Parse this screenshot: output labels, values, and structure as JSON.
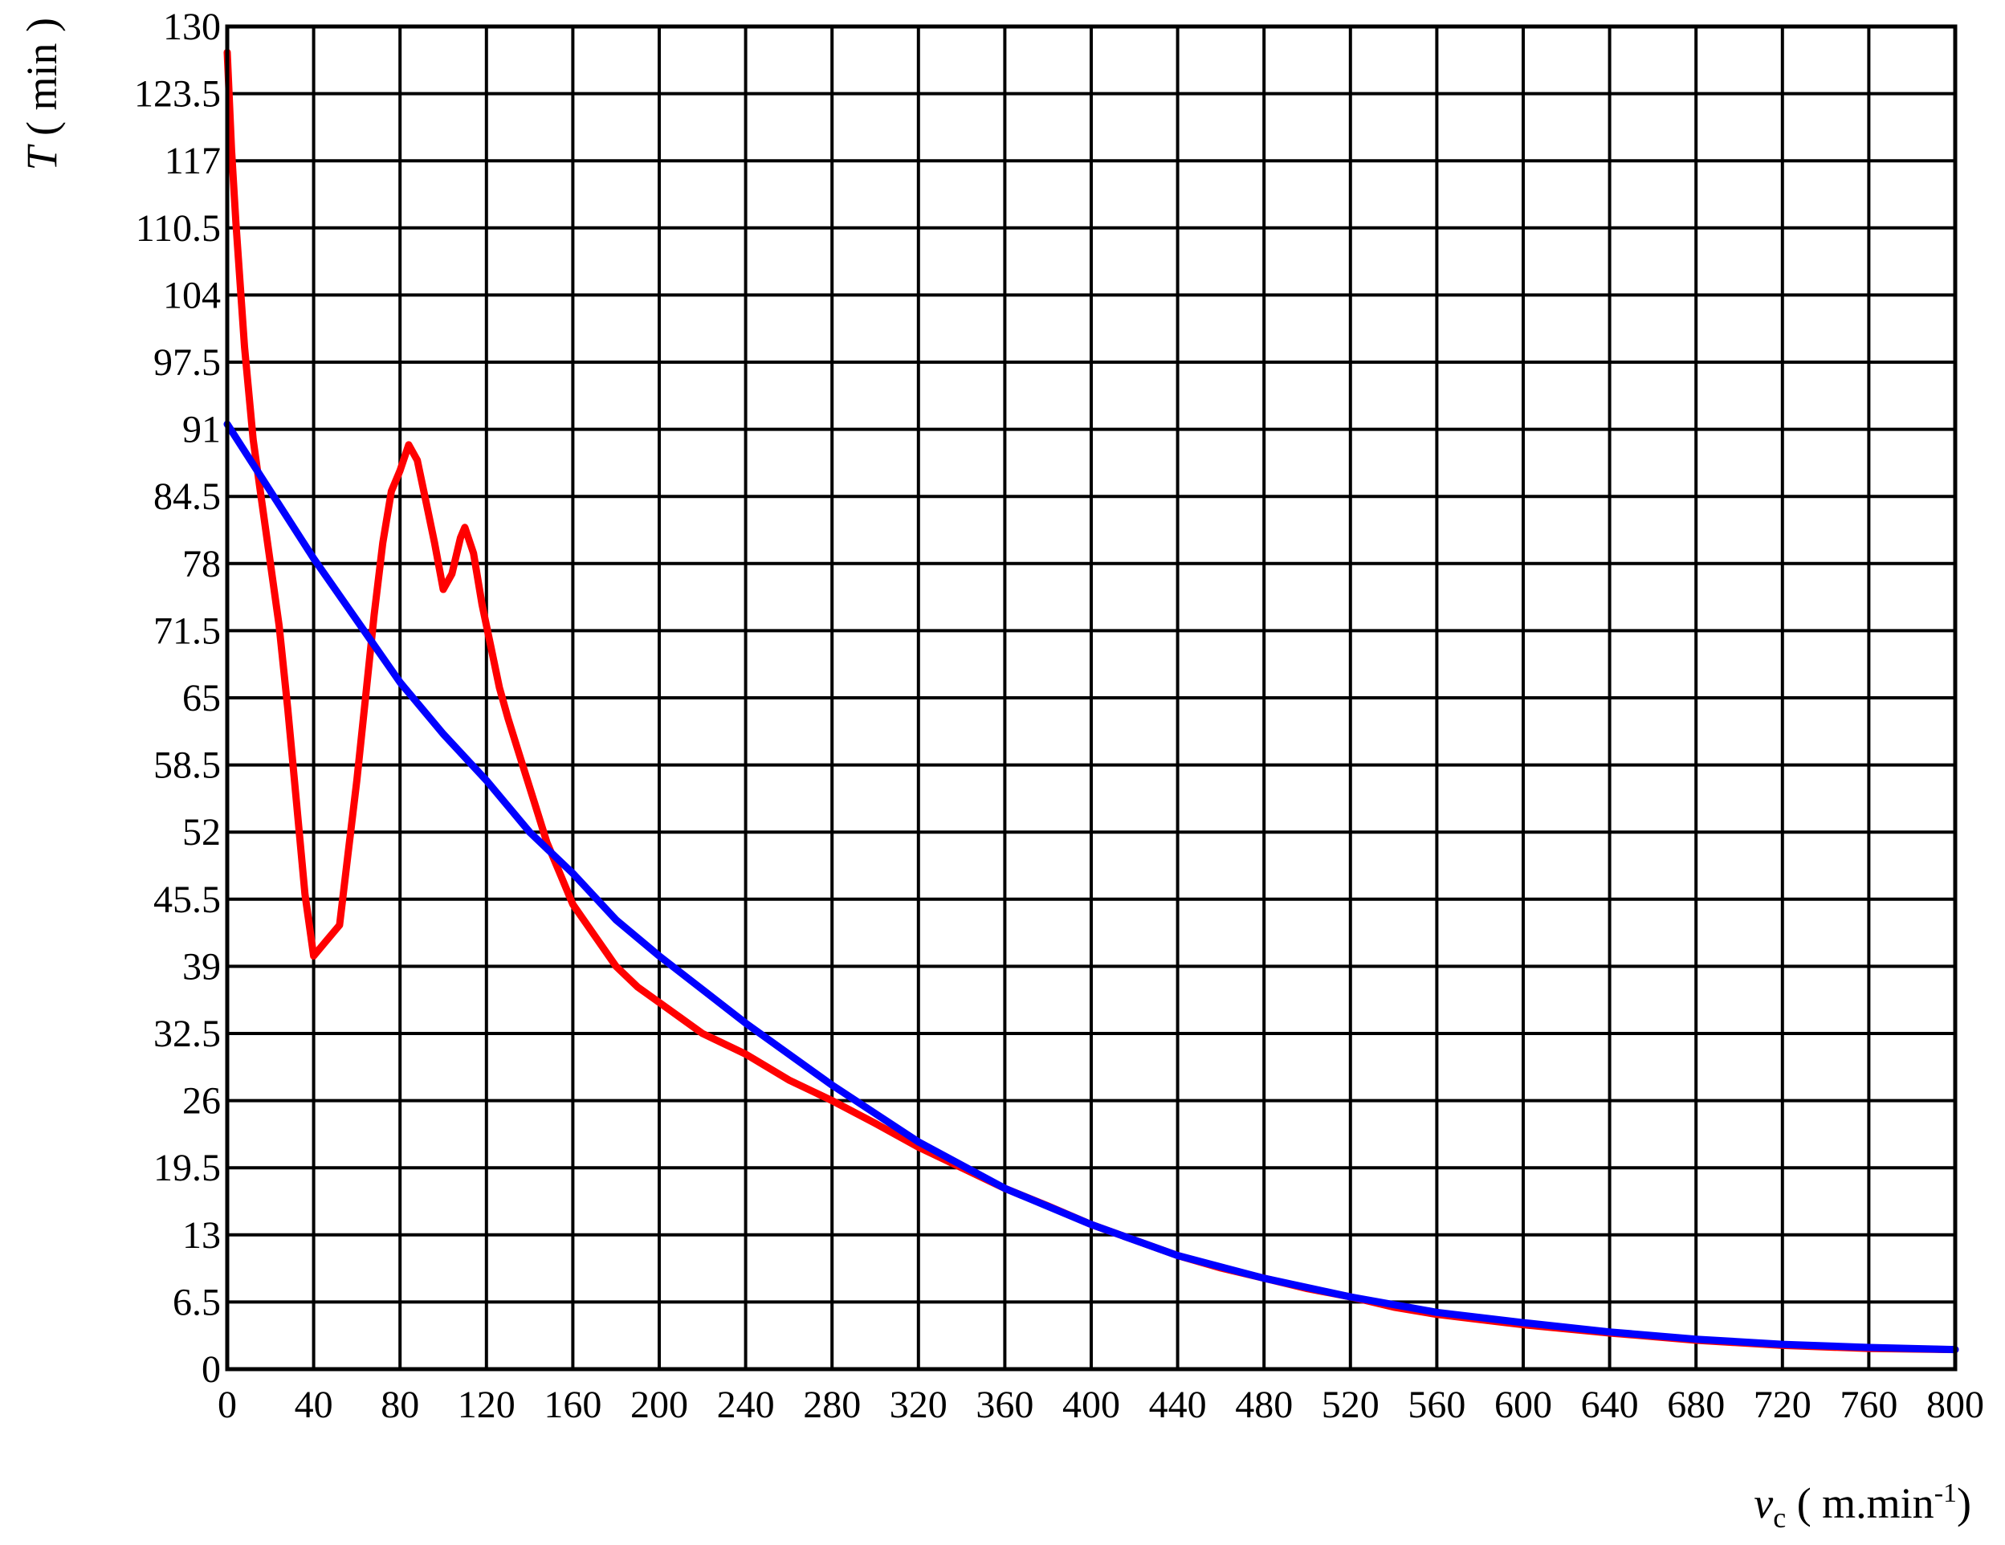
{
  "chart_data": {
    "type": "line",
    "title": "",
    "xlabel": {
      "italic": "v",
      "subscript": "c",
      "units_prefix": " ( m.min",
      "units_sup": "-1",
      "units_suffix": ")"
    },
    "ylabel": {
      "italic": "T",
      "units": " ( min )"
    },
    "xlim": [
      0,
      800
    ],
    "ylim": [
      0,
      130
    ],
    "grid": true,
    "legend": "none",
    "x_ticks": [
      "0",
      "40",
      "80",
      "120",
      "160",
      "200",
      "240",
      "280",
      "320",
      "360",
      "400",
      "440",
      "480",
      "520",
      "560",
      "600",
      "640",
      "680",
      "720",
      "760",
      "800"
    ],
    "y_ticks": [
      "0",
      "6.5",
      "13",
      "19.5",
      "26",
      "32.5",
      "39",
      "45.5",
      "52",
      "58.5",
      "65",
      "71.5",
      "78",
      "84.5",
      "91",
      "97.5",
      "104",
      "110.5",
      "117",
      "123.5",
      "130"
    ],
    "series": [
      {
        "color": "#ff0000",
        "points": [
          [
            0,
            127.5
          ],
          [
            2,
            118
          ],
          [
            4,
            111
          ],
          [
            8,
            99
          ],
          [
            12,
            90
          ],
          [
            16,
            84
          ],
          [
            20,
            78
          ],
          [
            24,
            72
          ],
          [
            28,
            64
          ],
          [
            32,
            55
          ],
          [
            36,
            46
          ],
          [
            40,
            40
          ],
          [
            46,
            41.5
          ],
          [
            52,
            43
          ],
          [
            56,
            50
          ],
          [
            60,
            57
          ],
          [
            64,
            65
          ],
          [
            68,
            73
          ],
          [
            72,
            80
          ],
          [
            76,
            85
          ],
          [
            80,
            87
          ],
          [
            84,
            89.5
          ],
          [
            88,
            88
          ],
          [
            92,
            84
          ],
          [
            96,
            80
          ],
          [
            100,
            75.5
          ],
          [
            104,
            77
          ],
          [
            108,
            80.5
          ],
          [
            110,
            81.5
          ],
          [
            114,
            79
          ],
          [
            118,
            74
          ],
          [
            122,
            70
          ],
          [
            126,
            66
          ],
          [
            130,
            63
          ],
          [
            136,
            59
          ],
          [
            142,
            55
          ],
          [
            148,
            51
          ],
          [
            154,
            48
          ],
          [
            160,
            45
          ],
          [
            170,
            42
          ],
          [
            180,
            39
          ],
          [
            190,
            37
          ],
          [
            200,
            35.5
          ],
          [
            210,
            34
          ],
          [
            220,
            32.5
          ],
          [
            240,
            30.5
          ],
          [
            260,
            28
          ],
          [
            280,
            26
          ],
          [
            300,
            23.8
          ],
          [
            320,
            21.5
          ],
          [
            340,
            19.5
          ],
          [
            360,
            17.5
          ],
          [
            380,
            15.8
          ],
          [
            400,
            14
          ],
          [
            420,
            12.5
          ],
          [
            440,
            11
          ],
          [
            460,
            9.8
          ],
          [
            480,
            8.8
          ],
          [
            500,
            7.8
          ],
          [
            520,
            7
          ],
          [
            540,
            6
          ],
          [
            560,
            5.3
          ],
          [
            580,
            4.8
          ],
          [
            600,
            4.3
          ],
          [
            640,
            3.5
          ],
          [
            680,
            2.8
          ],
          [
            720,
            2.3
          ],
          [
            760,
            2
          ],
          [
            800,
            1.9
          ]
        ]
      },
      {
        "color": "#0000ff",
        "points": [
          [
            0,
            91.5
          ],
          [
            20,
            85
          ],
          [
            40,
            78.5
          ],
          [
            60,
            72.5
          ],
          [
            80,
            66.5
          ],
          [
            100,
            61.5
          ],
          [
            120,
            57
          ],
          [
            140,
            52
          ],
          [
            160,
            48
          ],
          [
            180,
            43.5
          ],
          [
            200,
            40
          ],
          [
            240,
            33.5
          ],
          [
            280,
            27.5
          ],
          [
            320,
            22
          ],
          [
            360,
            17.5
          ],
          [
            400,
            14
          ],
          [
            440,
            11
          ],
          [
            480,
            8.8
          ],
          [
            520,
            7
          ],
          [
            560,
            5.5
          ],
          [
            600,
            4.5
          ],
          [
            640,
            3.6
          ],
          [
            680,
            2.9
          ],
          [
            720,
            2.4
          ],
          [
            760,
            2.1
          ],
          [
            800,
            1.9
          ]
        ]
      }
    ]
  }
}
